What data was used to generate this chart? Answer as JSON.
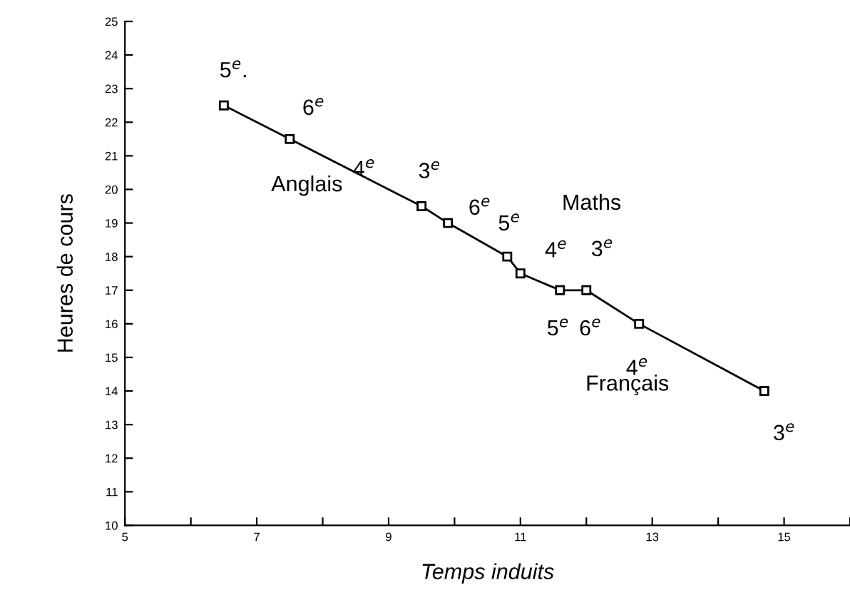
{
  "chart_data": {
    "type": "line",
    "xlabel": "Temps induits",
    "ylabel": "Heures de cours",
    "marker": "square",
    "grid": false,
    "color": "#000000",
    "x": [
      6.5,
      7.5,
      9.5,
      9.9,
      10.8,
      11,
      11.6,
      12,
      12.8,
      14.7
    ],
    "values": [
      22.5,
      21.5,
      19.5,
      19,
      18,
      17.5,
      17,
      17,
      16,
      14
    ],
    "xlim": [
      5,
      16
    ],
    "ylim": [
      10,
      25
    ],
    "xticks": [
      5,
      {
        "value": 6,
        "label": null
      },
      7,
      {
        "value": 8,
        "label": null
      },
      9,
      {
        "value": 10,
        "label": null
      },
      11,
      {
        "value": 12,
        "label": null
      },
      13,
      {
        "value": 14,
        "label": null
      },
      15,
      {
        "value": 16,
        "label": null
      }
    ],
    "yticks": [
      10,
      11,
      12,
      13,
      14,
      15,
      16,
      17,
      18,
      19,
      20,
      21,
      22,
      23,
      24,
      25
    ],
    "annotations": [
      {
        "text": "5$^{e}$.",
        "x": 6.5,
        "y": 22.5
      },
      {
        "text": "6$^{e}$",
        "x": 7.5,
        "y": 21.5
      },
      "Anglais",
      {
        "text": "4$^{e}$",
        "x": 9.5,
        "y": 19.5
      },
      {
        "text": "3$^{e}$",
        "x": 9.5,
        "y": 19.5
      },
      {
        "text": "6$^{e}$",
        "x": 9.9,
        "y": 19
      },
      "Maths",
      {
        "text": "5$^{e}$",
        "x": 10.8,
        "y": 18
      },
      {
        "text": "4$^{e}$",
        "x": 11,
        "y": 17.5
      },
      {
        "text": "3$^{e}$",
        "x": 12,
        "y": 17
      },
      {
        "text": "5$^{e}$",
        "x": 11.6,
        "y": 17
      },
      {
        "text": "6$^{e}$",
        "x": 12,
        "y": 17
      },
      {
        "text": "4$^{e}$",
        "x": 12.8,
        "y": 16
      },
      "Français",
      {
        "text": "3$^{e}$",
        "x": 14.7,
        "y": 14
      }
    ]
  }
}
